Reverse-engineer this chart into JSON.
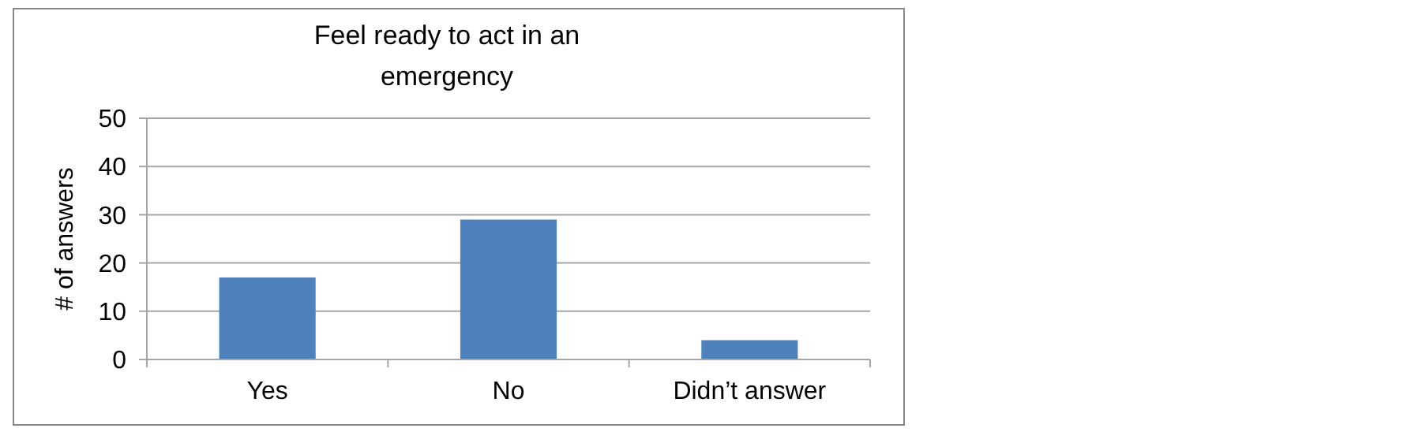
{
  "chart_data": {
    "type": "bar",
    "title": "Feel ready to act in an emergency",
    "ylabel": "# of answers",
    "categories": [
      "Yes",
      "No",
      "Didn’t answer"
    ],
    "values": [
      17,
      29,
      4
    ],
    "color": "#4f81bd",
    "ylim": [
      0,
      50
    ],
    "yticks": [
      0,
      10,
      20,
      30,
      40,
      50
    ],
    "grid": "y"
  }
}
